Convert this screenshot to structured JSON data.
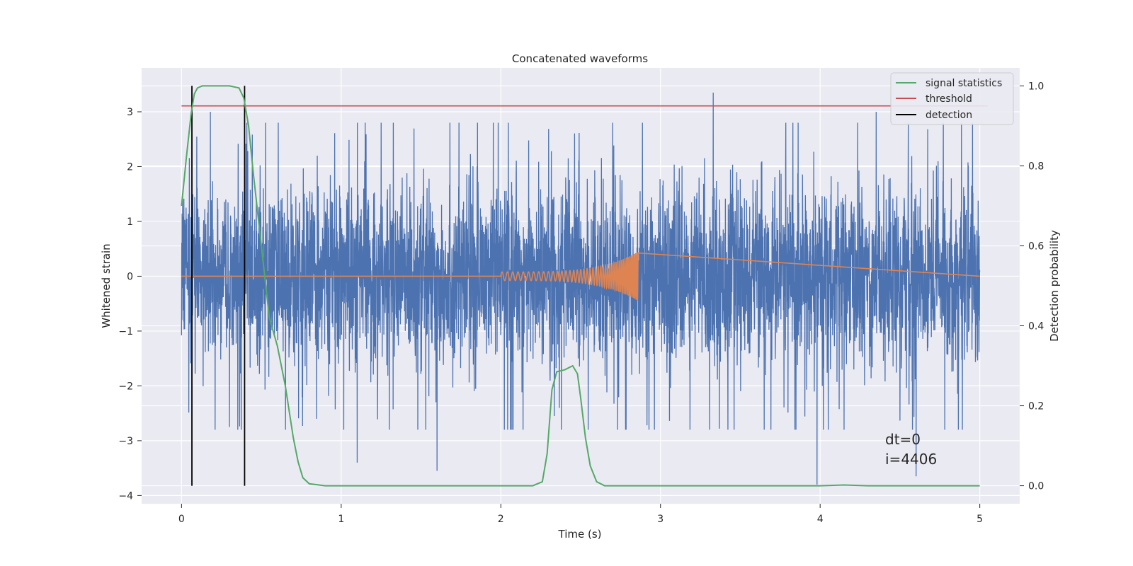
{
  "chart_data": {
    "type": "line",
    "title": "Concatenated waveforms",
    "xlabel": "Time (s)",
    "ylabel": "Whitened strain",
    "y2label": "Detection probability",
    "xlim": [
      -0.25,
      5.25
    ],
    "ylim": [
      -4.15,
      3.8
    ],
    "y2lim": [
      -0.045,
      1.045
    ],
    "xticks": [
      0,
      1,
      2,
      3,
      4,
      5
    ],
    "yticks": [
      -4,
      -3,
      -2,
      -1,
      0,
      1,
      2,
      3
    ],
    "y2ticks": [
      0.0,
      0.2,
      0.4,
      0.6,
      0.8,
      1.0
    ],
    "xticklabels": [
      "0",
      "1",
      "2",
      "3",
      "4",
      "5"
    ],
    "yticklabels": [
      "−4",
      "−3",
      "−2",
      "−1",
      "0",
      "1",
      "2",
      "3"
    ],
    "y2ticklabels": [
      "0.0",
      "0.2",
      "0.4",
      "0.6",
      "0.8",
      "1.0"
    ],
    "grid": true,
    "legend_position": "top-right",
    "colors": {
      "noise": "#4c72b0",
      "template": "#dd8452",
      "statistic": "#55a868",
      "threshold": "#c44e52",
      "detection": "#000000",
      "plot_bg": "#eaeaf2",
      "grid": "#ffffff"
    },
    "series": [
      {
        "name": "signal statistics",
        "axis": "right",
        "x": [
          0.0,
          0.03,
          0.06,
          0.08,
          0.1,
          0.13,
          0.16,
          0.2,
          0.3,
          0.36,
          0.39,
          0.42,
          0.45,
          0.5,
          0.55,
          0.6,
          0.65,
          0.7,
          0.73,
          0.76,
          0.8,
          0.9,
          1.0,
          2.2,
          2.26,
          2.29,
          2.32,
          2.35,
          2.4,
          2.45,
          2.48,
          2.5,
          2.53,
          2.56,
          2.6,
          2.65,
          2.7,
          4.0,
          4.15,
          4.3,
          5.0
        ],
        "values": [
          0.7,
          0.82,
          0.93,
          0.98,
          0.995,
          1.0,
          1.0,
          1.0,
          1.0,
          0.995,
          0.97,
          0.9,
          0.78,
          0.6,
          0.42,
          0.35,
          0.25,
          0.12,
          0.06,
          0.02,
          0.005,
          0.0,
          0.0,
          0.0,
          0.01,
          0.08,
          0.24,
          0.285,
          0.29,
          0.3,
          0.28,
          0.22,
          0.12,
          0.05,
          0.01,
          0.0,
          0.0,
          0.0,
          0.002,
          0.0,
          0.0
        ]
      },
      {
        "name": "threshold",
        "axis": "right",
        "x": [
          0.0,
          5.05
        ],
        "values": [
          0.95,
          0.95
        ]
      },
      {
        "name": "detection",
        "axis": "right",
        "x_positions": [
          0.065,
          0.395
        ],
        "ylim": [
          0.0,
          1.0
        ]
      },
      {
        "name": "",
        "axis": "left",
        "kind": "whitened-noise",
        "t_range": [
          0.0,
          5.0
        ],
        "envelope": [
          -2.8,
          2.8
        ],
        "extremes": [
          {
            "x": 3.33,
            "value": 3.35
          },
          {
            "x": 4.35,
            "value": 3.0
          },
          {
            "x": 0.18,
            "value": 3.0
          },
          {
            "x": 3.98,
            "value": -3.8
          },
          {
            "x": 4.6,
            "value": -3.65
          },
          {
            "x": 1.6,
            "value": -3.55
          },
          {
            "x": 1.1,
            "value": -3.4
          },
          {
            "x": 0.3,
            "value": -2.75
          }
        ]
      },
      {
        "name": "",
        "axis": "left",
        "kind": "chirp",
        "t_start": 2.0,
        "t_merger": 2.86,
        "amplitude_start": 0.08,
        "amplitude_peak": 0.45,
        "freq_start_hz": 30,
        "freq_end_hz": 120
      }
    ],
    "annotation": [
      "dt=0",
      "i=4406"
    ]
  }
}
